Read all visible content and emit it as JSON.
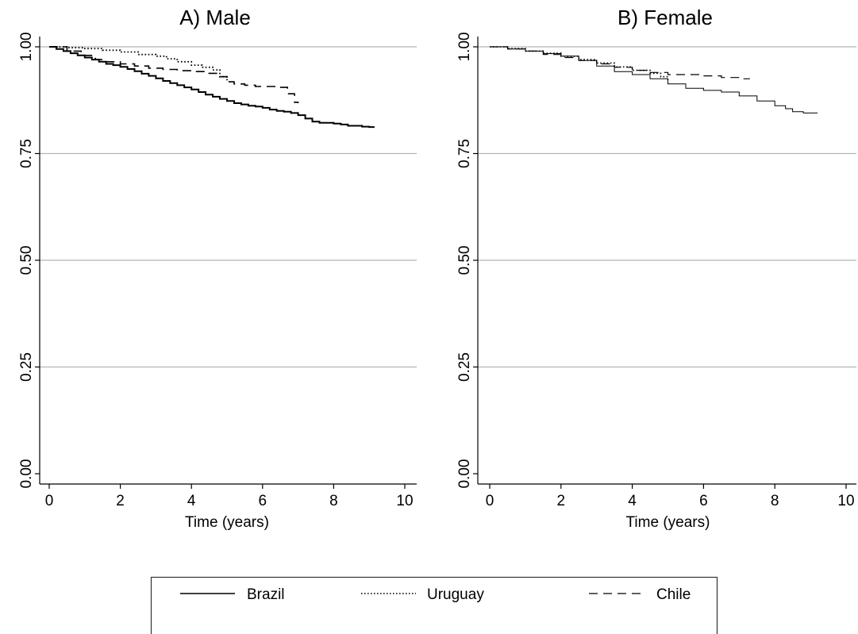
{
  "chart_data": [
    {
      "type": "line",
      "title": "A) Male",
      "xlabel": "Time (years)",
      "ylabel": "",
      "xlim": [
        0,
        10
      ],
      "ylim": [
        0,
        1
      ],
      "xticks": [
        "0",
        "2",
        "4",
        "6",
        "8",
        "10"
      ],
      "yticks": [
        "0.00",
        "0.25",
        "0.50",
        "0.75",
        "1.00"
      ],
      "grid": true,
      "series": [
        {
          "name": "Brazil",
          "style": "solid",
          "x": [
            0,
            0.2,
            0.4,
            0.6,
            0.8,
            1.0,
            1.2,
            1.4,
            1.6,
            1.8,
            2.0,
            2.2,
            2.4,
            2.6,
            2.8,
            3.0,
            3.2,
            3.4,
            3.6,
            3.8,
            4.0,
            4.2,
            4.4,
            4.6,
            4.8,
            5.0,
            5.2,
            5.4,
            5.6,
            5.8,
            6.0,
            6.2,
            6.4,
            6.6,
            6.8,
            7.0,
            7.2,
            7.4,
            7.6,
            7.8,
            8.0,
            8.2,
            8.4,
            8.6,
            8.8,
            9.0,
            9.15
          ],
          "y": [
            1.0,
            0.995,
            0.99,
            0.985,
            0.98,
            0.975,
            0.97,
            0.965,
            0.96,
            0.957,
            0.953,
            0.948,
            0.943,
            0.937,
            0.932,
            0.926,
            0.92,
            0.915,
            0.91,
            0.905,
            0.9,
            0.894,
            0.888,
            0.883,
            0.878,
            0.873,
            0.868,
            0.865,
            0.862,
            0.86,
            0.857,
            0.853,
            0.85,
            0.848,
            0.845,
            0.84,
            0.832,
            0.825,
            0.822,
            0.822,
            0.82,
            0.818,
            0.815,
            0.815,
            0.813,
            0.812,
            0.812
          ]
        },
        {
          "name": "Uruguay",
          "style": "dotted",
          "x": [
            0,
            0.5,
            1.0,
            1.5,
            2.0,
            2.5,
            3.0,
            3.3,
            3.6,
            4.0,
            4.3,
            4.6,
            4.8,
            5.0
          ],
          "y": [
            1.0,
            0.998,
            0.996,
            0.992,
            0.988,
            0.982,
            0.978,
            0.972,
            0.965,
            0.957,
            0.952,
            0.946,
            0.93,
            0.918
          ]
        },
        {
          "name": "Chile",
          "style": "dashed",
          "x": [
            0,
            0.5,
            0.9,
            1.3,
            1.6,
            2.0,
            2.4,
            2.8,
            3.2,
            3.6,
            4.0,
            4.4,
            4.8,
            5.0,
            5.2,
            5.5,
            5.8,
            6.0,
            6.4,
            6.7,
            6.9,
            7.0
          ],
          "y": [
            1.0,
            0.99,
            0.98,
            0.97,
            0.965,
            0.96,
            0.955,
            0.95,
            0.947,
            0.944,
            0.942,
            0.938,
            0.93,
            0.918,
            0.913,
            0.91,
            0.907,
            0.907,
            0.905,
            0.89,
            0.87,
            0.868
          ]
        }
      ]
    },
    {
      "type": "line",
      "title": "B) Female",
      "xlabel": "Time (years)",
      "ylabel": "",
      "xlim": [
        0,
        10
      ],
      "ylim": [
        0,
        1
      ],
      "xticks": [
        "0",
        "2",
        "4",
        "6",
        "8",
        "10"
      ],
      "yticks": [
        "0.00",
        "0.25",
        "0.50",
        "0.75",
        "1.00"
      ],
      "grid": true,
      "series": [
        {
          "name": "Brazil",
          "style": "solid",
          "x": [
            0,
            0.5,
            1.0,
            1.5,
            2.0,
            2.5,
            3.0,
            3.5,
            4.0,
            4.5,
            5.0,
            5.5,
            6.0,
            6.5,
            7.0,
            7.5,
            8.0,
            8.3,
            8.5,
            8.8,
            9.0,
            9.2
          ],
          "y": [
            1.0,
            0.995,
            0.99,
            0.984,
            0.978,
            0.968,
            0.955,
            0.942,
            0.935,
            0.925,
            0.913,
            0.903,
            0.898,
            0.894,
            0.885,
            0.873,
            0.862,
            0.855,
            0.848,
            0.845,
            0.845,
            0.845
          ]
        },
        {
          "name": "Uruguay",
          "style": "dotted",
          "x": [
            0,
            0.5,
            1.0,
            1.5,
            2.0,
            2.5,
            3.0,
            3.5,
            4.0,
            4.5,
            4.8,
            5.0
          ],
          "y": [
            1.0,
            0.996,
            0.99,
            0.985,
            0.978,
            0.97,
            0.962,
            0.953,
            0.945,
            0.938,
            0.93,
            0.92
          ]
        },
        {
          "name": "Chile",
          "style": "dashed",
          "x": [
            0,
            0.5,
            1.0,
            1.5,
            2.0,
            2.5,
            3.0,
            3.5,
            4.0,
            4.5,
            5.0,
            5.5,
            6.0,
            6.5,
            7.0,
            7.3
          ],
          "y": [
            1.0,
            0.995,
            0.99,
            0.982,
            0.975,
            0.968,
            0.96,
            0.952,
            0.945,
            0.94,
            0.935,
            0.935,
            0.932,
            0.928,
            0.925,
            0.925
          ]
        }
      ]
    }
  ],
  "legend": {
    "placement": "bottom",
    "entries": [
      {
        "label": "Brazil",
        "style": "solid"
      },
      {
        "label": "Uruguay",
        "style": "dotted"
      },
      {
        "label": "Chile",
        "style": "dashed"
      }
    ]
  },
  "colors": {
    "line": "#000000",
    "grid": "#b4b4b4",
    "axis": "#000000"
  }
}
